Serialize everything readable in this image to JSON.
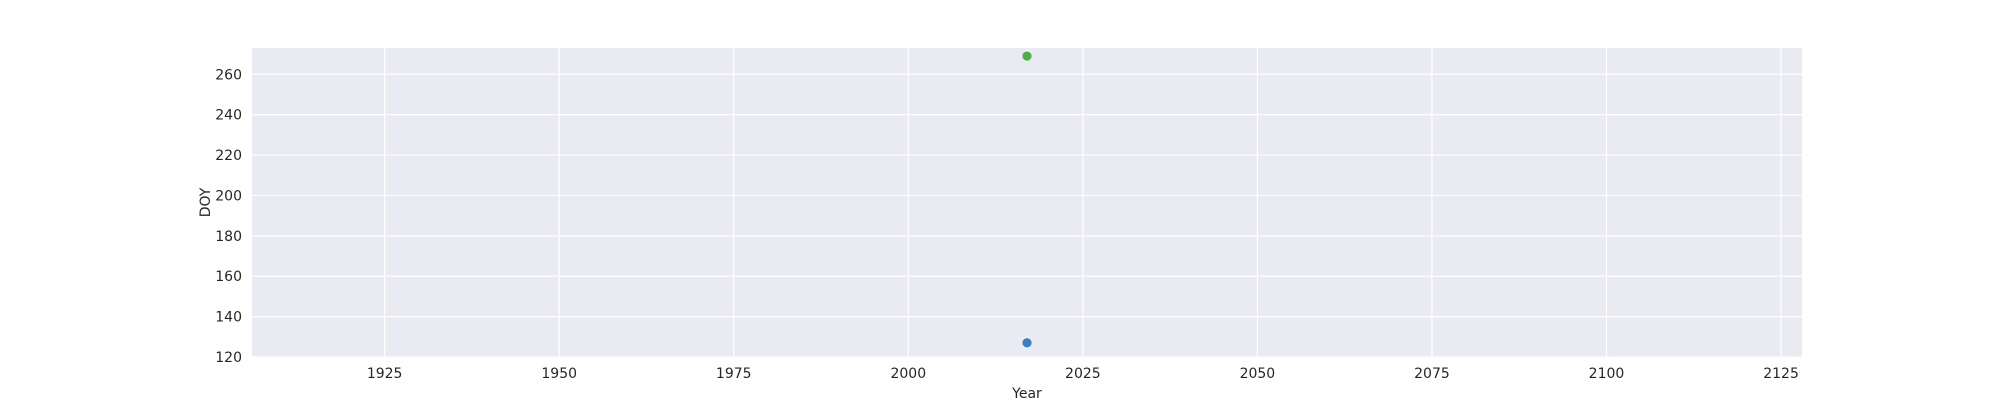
{
  "chart_data": {
    "type": "scatter",
    "title": "",
    "xlabel": "Year",
    "ylabel": "DOY",
    "xlim": [
      1906,
      2128
    ],
    "ylim": [
      120,
      273
    ],
    "xticks": [
      1925,
      1950,
      1975,
      2000,
      2025,
      2050,
      2075,
      2100,
      2125
    ],
    "yticks": [
      120,
      140,
      160,
      180,
      200,
      220,
      240,
      260
    ],
    "grid": true,
    "legend": "none",
    "background_color": "#eaeaf2",
    "grid_color": "#ffffff",
    "points": [
      {
        "x": 2017,
        "y": 127,
        "color": "#3a7fc1"
      },
      {
        "x": 2017,
        "y": 269,
        "color": "#4daf4a"
      }
    ]
  }
}
